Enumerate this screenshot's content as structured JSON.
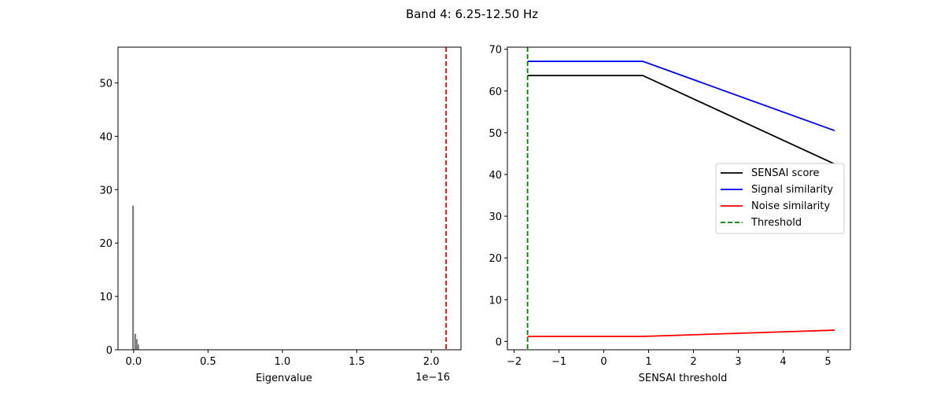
{
  "figure": {
    "title": "Band 4: 6.25-12.50 Hz"
  },
  "chart_data": [
    {
      "type": "bar",
      "subtype": "histogram",
      "xlabel": "Eigenvalue",
      "ylabel": "",
      "x_offset_text": "1e−16",
      "x_scale": 1e-16,
      "xlim": [
        -0.105,
        2.2
      ],
      "ylim": [
        0,
        56.7
      ],
      "xticks": [
        0.0,
        0.5,
        1.0,
        1.5,
        2.0
      ],
      "xtick_labels": [
        "0.0",
        "0.5",
        "1.0",
        "1.5",
        "2.0"
      ],
      "yticks": [
        0,
        10,
        20,
        30,
        40,
        50
      ],
      "ytick_labels": [
        "0",
        "10",
        "20",
        "30",
        "40",
        "50"
      ],
      "bar_color": "#808080",
      "bins": [
        {
          "x": -0.01,
          "count": 27
        },
        {
          "x": 0.005,
          "count": 3
        },
        {
          "x": 0.015,
          "count": 2
        },
        {
          "x": 0.025,
          "count": 1
        }
      ],
      "vertical_line": {
        "x": 2.1,
        "color": "#ff0000",
        "style": "dashed"
      },
      "grid": false
    },
    {
      "type": "line",
      "xlabel": "SENSAI threshold",
      "ylabel": "",
      "xlim": [
        -2.15,
        5.5
      ],
      "ylim": [
        -2.0,
        70.5
      ],
      "xticks": [
        -2,
        -1,
        0,
        1,
        2,
        3,
        4,
        5
      ],
      "xtick_labels": [
        "−2",
        "−1",
        "0",
        "1",
        "2",
        "3",
        "4",
        "5"
      ],
      "yticks": [
        0,
        10,
        20,
        30,
        40,
        50,
        60,
        70
      ],
      "ytick_labels": [
        "0",
        "10",
        "20",
        "30",
        "40",
        "50",
        "60",
        "70"
      ],
      "series": [
        {
          "name": "SENSAI score",
          "color": "#000000",
          "style": "solid",
          "x": [
            -1.7,
            0.87,
            5.15
          ],
          "y": [
            63.7,
            63.7,
            42.5
          ]
        },
        {
          "name": "Signal similarity",
          "color": "#0000ff",
          "style": "solid",
          "x": [
            -1.7,
            0.87,
            5.15
          ],
          "y": [
            67.1,
            67.1,
            50.5
          ]
        },
        {
          "name": "Noise similarity",
          "color": "#ff0000",
          "style": "solid",
          "x": [
            -1.7,
            0.87,
            5.15
          ],
          "y": [
            1.2,
            1.2,
            2.7
          ]
        }
      ],
      "threshold": {
        "name": "Threshold",
        "x": -1.7,
        "color": "#008000",
        "style": "dashed"
      },
      "legend": {
        "position": "center-right"
      },
      "grid": false
    }
  ]
}
